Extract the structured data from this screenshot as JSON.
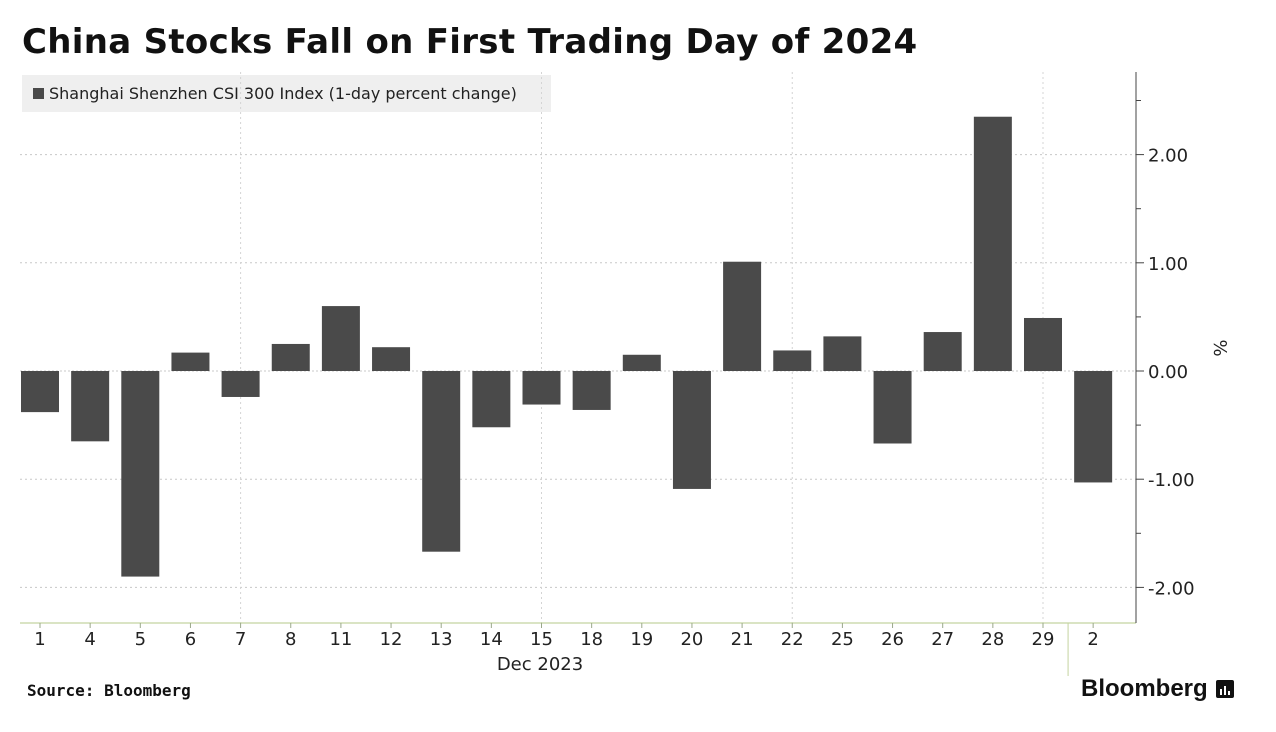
{
  "title": "China Stocks Fall on First Trading Day of 2024",
  "legend": {
    "label": "Shanghai Shenzhen CSI 300 Index (1-day percent change)",
    "color": "#4a4a4a"
  },
  "source": "Source: Bloomberg",
  "brand": "Bloomberg",
  "chart_data": {
    "type": "bar",
    "title": "China Stocks Fall on First Trading Day of 2024",
    "categories": [
      "1",
      "4",
      "5",
      "6",
      "7",
      "8",
      "11",
      "12",
      "13",
      "14",
      "15",
      "18",
      "19",
      "20",
      "21",
      "22",
      "25",
      "26",
      "27",
      "28",
      "29",
      "2"
    ],
    "series": [
      {
        "name": "Shanghai Shenzhen CSI 300 Index (1-day percent change)",
        "values": [
          -0.38,
          -0.65,
          -1.9,
          0.17,
          -0.24,
          0.25,
          0.6,
          0.22,
          -1.67,
          -0.52,
          -0.31,
          -0.36,
          0.15,
          -1.09,
          1.01,
          0.19,
          0.32,
          -0.67,
          0.36,
          2.35,
          0.49,
          -1.03
        ],
        "color": "#4a4a4a"
      }
    ],
    "xlabel": "Dec 2023",
    "ylabel": "%",
    "ylim": [
      -2.35,
      2.75
    ],
    "yticks": [
      2.0,
      1.0,
      0.0,
      -1.0,
      -2.0
    ],
    "ytick_labels": [
      "2.00",
      "1.00",
      "0.00",
      "-1.00",
      "-2.00"
    ],
    "grid": true,
    "legend_position": "top-left",
    "axis_side": "right"
  }
}
